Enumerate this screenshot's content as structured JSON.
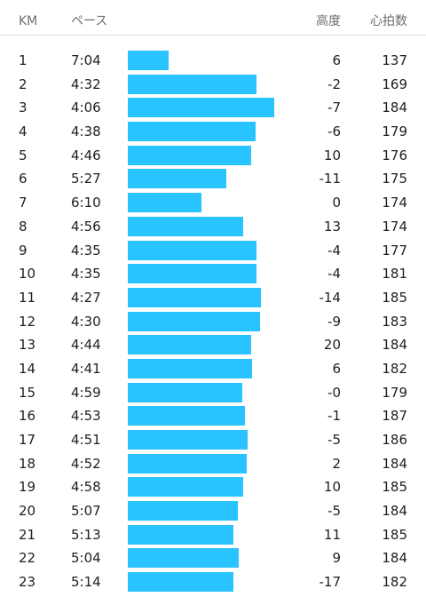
{
  "header": {
    "km": "KM",
    "pace": "ペース",
    "elevation": "高度",
    "heart_rate": "心拍数"
  },
  "colors": {
    "bar": "#29c3ff",
    "divider": "#dcdcdc"
  },
  "splits": [
    {
      "km": "1",
      "pace": "7:04",
      "elevation": "6",
      "heart_rate": "137",
      "relative_speed": 0.28
    },
    {
      "km": "2",
      "pace": "4:32",
      "elevation": "-2",
      "heart_rate": "169",
      "relative_speed": 0.88
    },
    {
      "km": "3",
      "pace": "4:06",
      "elevation": "-7",
      "heart_rate": "184",
      "relative_speed": 1.0
    },
    {
      "km": "4",
      "pace": "4:38",
      "elevation": "-6",
      "heart_rate": "179",
      "relative_speed": 0.87
    },
    {
      "km": "5",
      "pace": "4:46",
      "elevation": "10",
      "heart_rate": "176",
      "relative_speed": 0.84
    },
    {
      "km": "6",
      "pace": "5:27",
      "elevation": "-11",
      "heart_rate": "175",
      "relative_speed": 0.67
    },
    {
      "km": "7",
      "pace": "6:10",
      "elevation": "0",
      "heart_rate": "174",
      "relative_speed": 0.5
    },
    {
      "km": "8",
      "pace": "4:56",
      "elevation": "13",
      "heart_rate": "174",
      "relative_speed": 0.79
    },
    {
      "km": "9",
      "pace": "4:35",
      "elevation": "-4",
      "heart_rate": "177",
      "relative_speed": 0.88
    },
    {
      "km": "10",
      "pace": "4:35",
      "elevation": "-4",
      "heart_rate": "181",
      "relative_speed": 0.88
    },
    {
      "km": "11",
      "pace": "4:27",
      "elevation": "-14",
      "heart_rate": "185",
      "relative_speed": 0.91
    },
    {
      "km": "12",
      "pace": "4:30",
      "elevation": "-9",
      "heart_rate": "183",
      "relative_speed": 0.9
    },
    {
      "km": "13",
      "pace": "4:44",
      "elevation": "20",
      "heart_rate": "184",
      "relative_speed": 0.84
    },
    {
      "km": "14",
      "pace": "4:41",
      "elevation": "6",
      "heart_rate": "182",
      "relative_speed": 0.85
    },
    {
      "km": "15",
      "pace": "4:59",
      "elevation": "-0",
      "heart_rate": "179",
      "relative_speed": 0.78
    },
    {
      "km": "16",
      "pace": "4:53",
      "elevation": "-1",
      "heart_rate": "187",
      "relative_speed": 0.8
    },
    {
      "km": "17",
      "pace": "4:51",
      "elevation": "-5",
      "heart_rate": "186",
      "relative_speed": 0.82
    },
    {
      "km": "18",
      "pace": "4:52",
      "elevation": "2",
      "heart_rate": "184",
      "relative_speed": 0.81
    },
    {
      "km": "19",
      "pace": "4:58",
      "elevation": "10",
      "heart_rate": "185",
      "relative_speed": 0.79
    },
    {
      "km": "20",
      "pace": "5:07",
      "elevation": "-5",
      "heart_rate": "184",
      "relative_speed": 0.75
    },
    {
      "km": "21",
      "pace": "5:13",
      "elevation": "11",
      "heart_rate": "185",
      "relative_speed": 0.72
    },
    {
      "km": "22",
      "pace": "5:04",
      "elevation": "9",
      "heart_rate": "184",
      "relative_speed": 0.76
    },
    {
      "km": "23",
      "pace": "5:14",
      "elevation": "-17",
      "heart_rate": "182",
      "relative_speed": 0.72
    }
  ]
}
